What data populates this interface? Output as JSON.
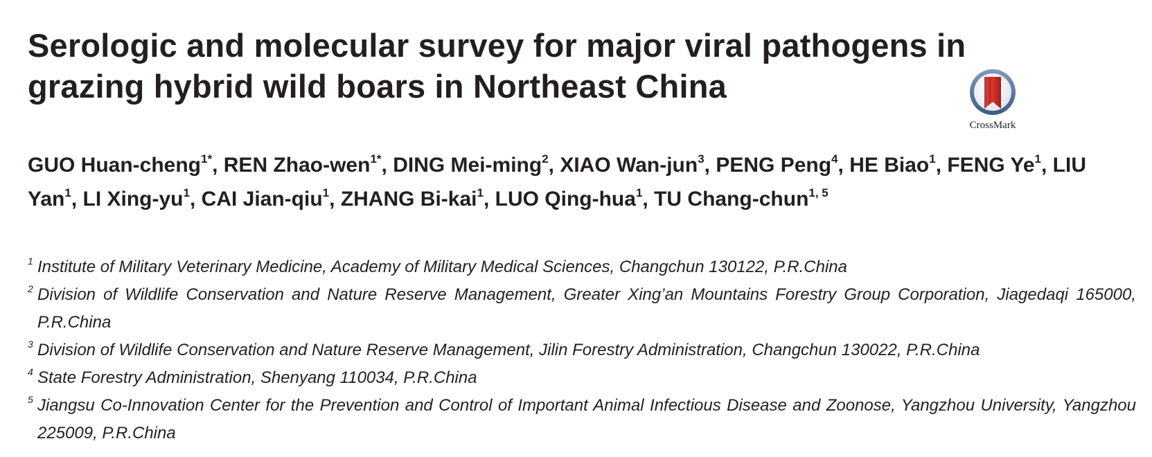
{
  "paper": {
    "title": "Serologic and molecular survey for major viral pathogens in grazing hybrid wild boars in Northeast China",
    "crossmark_label": "CrossMark",
    "authors": [
      {
        "name": "GUO Huan-cheng",
        "sup": "1*"
      },
      {
        "name": "REN Zhao-wen",
        "sup": "1*"
      },
      {
        "name": "DING Mei-ming",
        "sup": "2"
      },
      {
        "name": "XIAO Wan-jun",
        "sup": "3"
      },
      {
        "name": "PENG Peng",
        "sup": "4"
      },
      {
        "name": "HE Biao",
        "sup": "1"
      },
      {
        "name": "FENG Ye",
        "sup": "1"
      },
      {
        "name": "LIU Yan",
        "sup": "1"
      },
      {
        "name": "LI Xing-yu",
        "sup": "1"
      },
      {
        "name": "CAI Jian-qiu",
        "sup": "1"
      },
      {
        "name": "ZHANG Bi-kai",
        "sup": "1"
      },
      {
        "name": "LUO Qing-hua",
        "sup": "1"
      },
      {
        "name": "TU Chang-chun",
        "sup": "1, 5"
      }
    ],
    "affiliations": [
      {
        "num": "1",
        "text": "Institute of Military Veterinary Medicine, Academy of Military Medical Sciences, Changchun 130122, P.R.China"
      },
      {
        "num": "2",
        "text": "Division of Wildlife Conservation and Nature Reserve Management, Greater Xing’an Mountains Forestry Group Corporation, Jiagedaqi 165000, P.R.China"
      },
      {
        "num": "3",
        "text": "Division of Wildlife Conservation and Nature Reserve Management, Jilin Forestry Administration, Changchun 130022, P.R.China"
      },
      {
        "num": "4",
        "text": "State Forestry Administration, Shenyang 110034, P.R.China"
      },
      {
        "num": "5",
        "text": "Jiangsu Co-Innovation Center for the Prevention and Control of Important Animal Infectious Disease and Zoonose, Yangzhou University, Yangzhou 225009, P.R.China"
      }
    ],
    "colors": {
      "text": "#231f20",
      "crossmark_ring": "#4f6f95",
      "crossmark_ribbon": "#c7231c"
    },
    "icons": {
      "crossmark": "crossmark-icon"
    }
  }
}
